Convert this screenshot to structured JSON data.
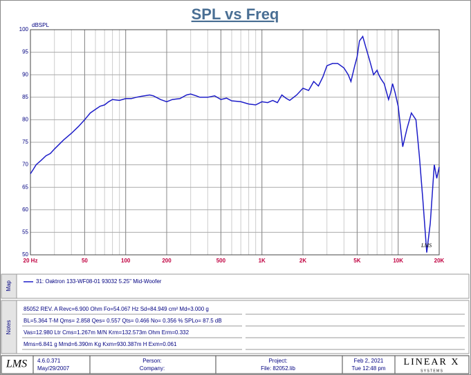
{
  "chart_data": {
    "type": "line",
    "title": "SPL vs Freq",
    "y_label": "dBSPL",
    "x_scale": "log",
    "grid": true,
    "xlim": [
      20,
      20000
    ],
    "ylim": [
      50,
      100
    ],
    "xticks": [
      {
        "value": 20,
        "label": "20  Hz"
      },
      50,
      100,
      200,
      500,
      {
        "value": 1000,
        "label": "1K"
      },
      {
        "value": 2000,
        "label": "2K"
      },
      {
        "value": 5000,
        "label": "5K"
      },
      {
        "value": 10000,
        "label": "10K"
      },
      {
        "value": 20000,
        "label": "20K"
      }
    ],
    "yticks": [
      50,
      55,
      60,
      65,
      70,
      75,
      80,
      85,
      90,
      95,
      100
    ],
    "x": [
      20,
      21,
      22,
      24,
      26,
      28,
      30,
      35,
      40,
      45,
      50,
      55,
      60,
      65,
      70,
      75,
      80,
      90,
      100,
      110,
      120,
      130,
      150,
      160,
      180,
      200,
      220,
      250,
      280,
      300,
      330,
      350,
      400,
      450,
      500,
      550,
      600,
      700,
      800,
      900,
      1000,
      1100,
      1200,
      1300,
      1400,
      1500,
      1600,
      1800,
      2000,
      2200,
      2400,
      2600,
      2800,
      3000,
      3300,
      3600,
      4000,
      4300,
      4500,
      4800,
      5000,
      5200,
      5500,
      5800,
      6200,
      6600,
      7000,
      7200,
      7500,
      7900,
      8500,
      8800,
      9100,
      9500,
      10000,
      10800,
      11600,
      12500,
      13500,
      14300,
      15200,
      16200,
      17200,
      18400,
      19200,
      20000
    ],
    "series": [
      {
        "name": "31: Oaktron 133-WF08-01 93032 5.25\" Mid-Woofer",
        "color": "#1c1cc8",
        "values": [
          68,
          69,
          70,
          71,
          72,
          72.5,
          73.5,
          75.5,
          77,
          78.5,
          80,
          81.5,
          82.3,
          83,
          83.3,
          84,
          84.5,
          84.3,
          84.7,
          84.7,
          85,
          85.2,
          85.5,
          85.3,
          84.5,
          84,
          84.5,
          84.7,
          85.5,
          85.7,
          85.3,
          85,
          85,
          85.3,
          84.5,
          84.8,
          84.2,
          84,
          83.5,
          83.3,
          84,
          83.8,
          84.3,
          83.8,
          85.5,
          84.8,
          84.3,
          85.5,
          87,
          86.5,
          88.5,
          87.5,
          89.5,
          92,
          92.5,
          92.5,
          91.5,
          90,
          88.5,
          92,
          94,
          97.5,
          98.5,
          96,
          93,
          90,
          91,
          90,
          89,
          88,
          84.5,
          86,
          88,
          86,
          83,
          74,
          78,
          81.5,
          80,
          72,
          62,
          50.5,
          57,
          70,
          67,
          69.5
        ]
      }
    ],
    "watermark": "LMS"
  },
  "map_label": "Map",
  "notes_label": "Notes",
  "notes": [
    "85052 REV. A  Revc=6.900 Ohm  Fo=54.067 Hz  Sd=84.949 cm² Md=3.000 g",
    "BL=5.364 T-M  Qms= 2.858  Qes= 0.557  Qts= 0.466  No= 0.356 %  SPLo= 87.5 dB",
    "Vas=12.980 Ltr  Cms=1.267m M/N  Krm=132.573m Ohm  Erm=0.332",
    "Mms=6.841 g  Mmd=6.390m Kg  Kxm=930.387m H  Exm=0.061"
  ],
  "footer": {
    "logo": "LMS",
    "version": "4.6.0.371",
    "version_date": "May/29/2007",
    "person": "Person:",
    "company": "Company:",
    "project": "Project:",
    "file": "File: 82052.lib",
    "date": "Feb  2, 2021",
    "time": "Tue 12:48 pm",
    "brand": "LINEAR X",
    "brand_sub": "S Y S T E M S"
  }
}
